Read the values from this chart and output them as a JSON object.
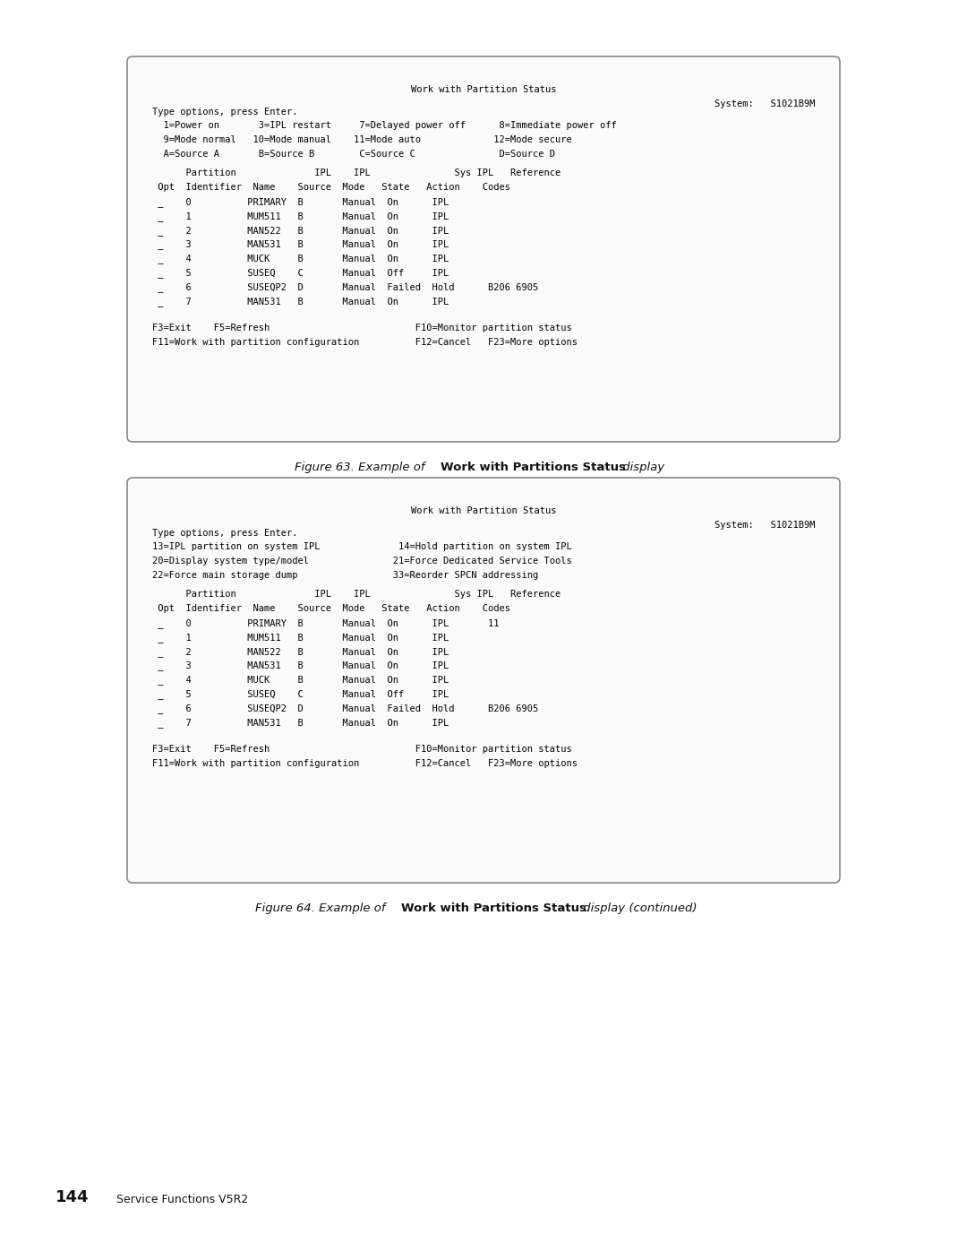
{
  "bg_color": "#ffffff",
  "box_border": "#888888",
  "page_num": "144",
  "page_label": "Service Functions V5R2",
  "fig63_caption_italic": "Figure 63. Example of ",
  "fig63_caption_bold": "Work with Partitions Status",
  "fig63_caption_end": " display",
  "fig64_caption_italic": "Figure 64. Example of ",
  "fig64_caption_bold": "Work with Partitions Status",
  "fig64_caption_end": " display (continued)",
  "box1": {
    "title": "Work with Partition Status",
    "system_label": "System:",
    "system_value": "S1021B9M",
    "type_options": "Type options, press Enter.",
    "options": [
      "  1=Power on       3=IPL restart     7=Delayed power off      8=Immediate power off",
      "  9=Mode normal   10=Mode manual    11=Mode auto             12=Mode secure",
      "  A=Source A       B=Source B        C=Source C               D=Source D"
    ],
    "col_headers_line1": "      Partition              IPL    IPL               Sys IPL   Reference",
    "col_headers_line2": " Opt  Identifier  Name    Source  Mode   State   Action    Codes",
    "rows": [
      " _    0          PRIMARY  B       Manual  On      IPL",
      " _    1          MUM511   B       Manual  On      IPL",
      " _    2          MAN522   B       Manual  On      IPL",
      " _    3          MAN531   B       Manual  On      IPL",
      " _    4          MUCK     B       Manual  On      IPL",
      " _    5          SUSEQ    C       Manual  Off     IPL",
      " _    6          SUSEQP2  D       Manual  Failed  Hold      B206 6905",
      " _    7          MAN531   B       Manual  On      IPL"
    ],
    "footer": [
      "F3=Exit    F5=Refresh                          F10=Monitor partition status",
      "F11=Work with partition configuration          F12=Cancel   F23=More options"
    ]
  },
  "box2": {
    "title": "Work with Partition Status",
    "system_label": "System:",
    "system_value": "S1021B9M",
    "type_options": "Type options, press Enter.",
    "options": [
      "13=IPL partition on system IPL              14=Hold partition on system IPL",
      "20=Display system type/model               21=Force Dedicated Service Tools",
      "22=Force main storage dump                 33=Reorder SPCN addressing"
    ],
    "col_headers_line1": "      Partition              IPL    IPL               Sys IPL   Reference",
    "col_headers_line2": " Opt  Identifier  Name    Source  Mode   State   Action    Codes",
    "rows": [
      " _    0          PRIMARY  B       Manual  On      IPL       11",
      " _    1          MUM511   B       Manual  On      IPL",
      " _    2          MAN522   B       Manual  On      IPL",
      " _    3          MAN531   B       Manual  On      IPL",
      " _    4          MUCK     B       Manual  On      IPL",
      " _    5          SUSEQ    C       Manual  Off     IPL",
      " _    6          SUSEQP2  D       Manual  Failed  Hold      B206 6905",
      " _    7          MAN531   B       Manual  On      IPL"
    ],
    "footer": [
      "F3=Exit    F5=Refresh                          F10=Monitor partition status",
      "F11=Work with partition configuration          F12=Cancel   F23=More options"
    ]
  }
}
